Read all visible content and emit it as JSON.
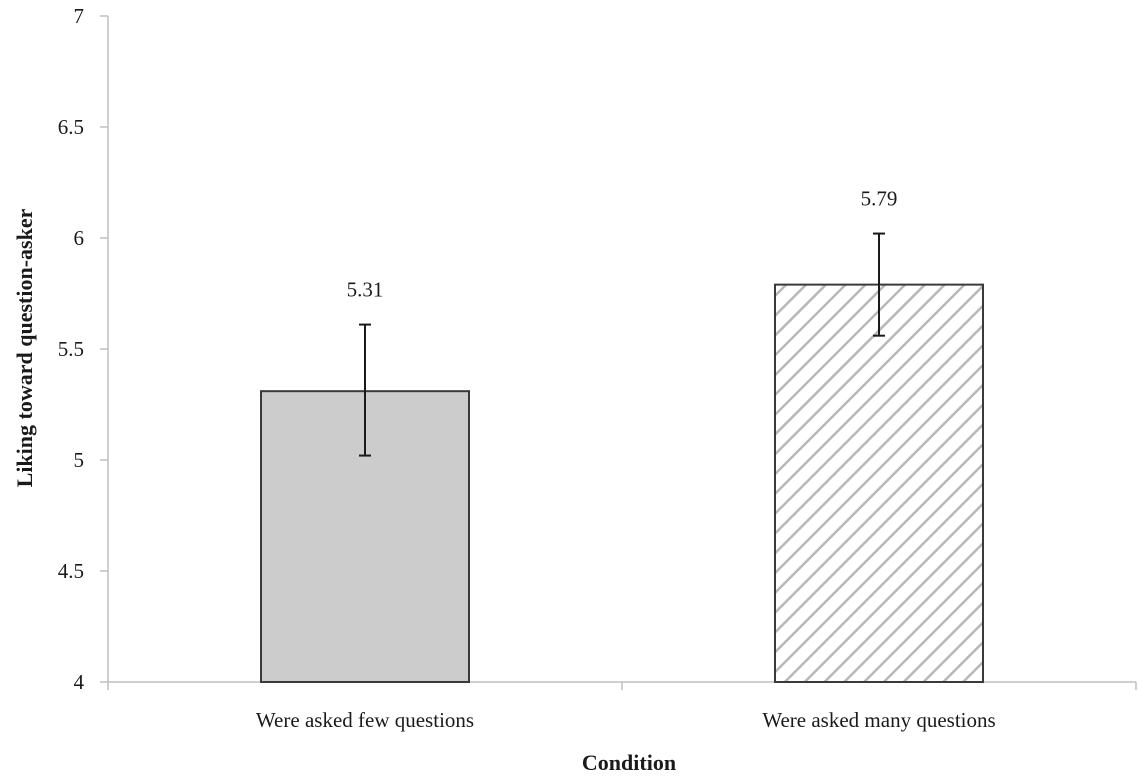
{
  "chart_data": {
    "type": "bar",
    "title": "",
    "xlabel": "Condition",
    "ylabel": "Liking toward question-asker",
    "categories": [
      "Were asked few questions",
      "Were asked many questions"
    ],
    "values": [
      5.31,
      5.79
    ],
    "data_labels": [
      "5.31",
      "5.79"
    ],
    "error_bars": [
      {
        "low": 5.02,
        "high": 5.61
      },
      {
        "low": 5.56,
        "high": 6.02
      }
    ],
    "ylim": [
      4,
      7
    ],
    "yticks": [
      "4",
      "4.5",
      "5",
      "5.5",
      "6",
      "6.5",
      "7"
    ],
    "grid": false,
    "legend": "none",
    "bar_styles": [
      {
        "fill": "solid",
        "color": "#cccccc"
      },
      {
        "fill": "diagonal-hatch",
        "color": "#bbbbbb"
      }
    ],
    "axis_color": "#bfbfbf",
    "edge_color": "#3a3a3a"
  }
}
